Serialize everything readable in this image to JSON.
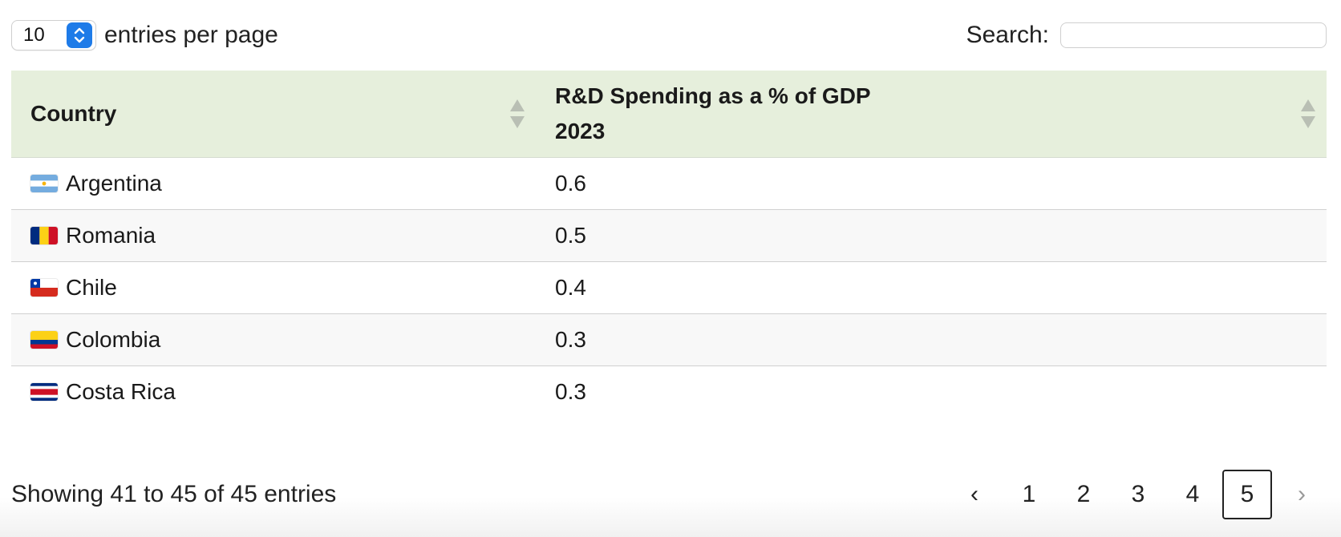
{
  "length_menu": {
    "selected": "10",
    "suffix": "entries per page"
  },
  "search": {
    "label": "Search:",
    "value": "",
    "placeholder": ""
  },
  "table": {
    "columns": [
      {
        "label": "Country"
      },
      {
        "label_line1": "R&D Spending as a % of GDP",
        "label_line2": "2023"
      }
    ],
    "rows": [
      {
        "country": "Argentina",
        "flag": "argentina-flag-icon",
        "value": "0.6"
      },
      {
        "country": "Romania",
        "flag": "romania-flag-icon",
        "value": "0.5"
      },
      {
        "country": "Chile",
        "flag": "chile-flag-icon",
        "value": "0.4"
      },
      {
        "country": "Colombia",
        "flag": "colombia-flag-icon",
        "value": "0.3"
      },
      {
        "country": "Costa Rica",
        "flag": "costa-rica-flag-icon",
        "value": "0.3"
      }
    ]
  },
  "footer": {
    "info": "Showing 41 to 45 of 45 entries",
    "pagination": {
      "prev": "‹",
      "pages": [
        "1",
        "2",
        "3",
        "4",
        "5"
      ],
      "current": "5",
      "next": "›"
    }
  },
  "colors": {
    "header_bg": "#e6efdc",
    "accent": "#1e7be8",
    "row_stripe": "#f8f8f8"
  }
}
